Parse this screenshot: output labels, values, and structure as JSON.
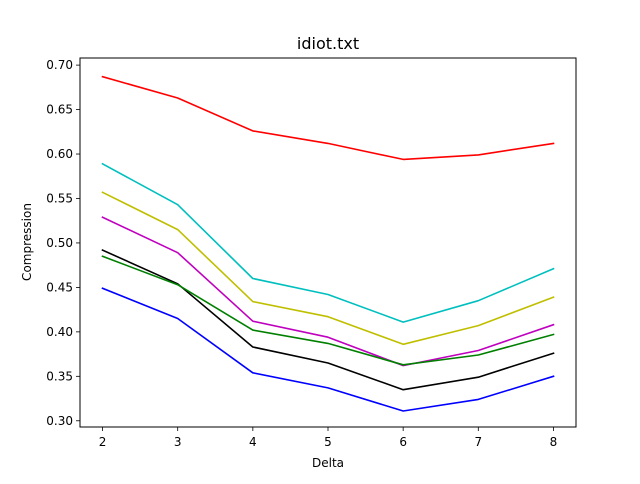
{
  "chart_data": {
    "type": "line",
    "title": "idiot.txt",
    "xlabel": "Delta",
    "ylabel": "Compression",
    "x": [
      2,
      3,
      4,
      5,
      6,
      7,
      8
    ],
    "xlim": [
      1.7,
      8.3
    ],
    "ylim": [
      0.293,
      0.708
    ],
    "xticks": [
      2,
      3,
      4,
      5,
      6,
      7,
      8
    ],
    "yticks": [
      0.3,
      0.35,
      0.4,
      0.45,
      0.5,
      0.55,
      0.6,
      0.65,
      0.7
    ],
    "grid": false,
    "series": [
      {
        "color": "#ff0000",
        "values": [
          0.687,
          0.663,
          0.626,
          0.612,
          0.594,
          0.599,
          0.612
        ]
      },
      {
        "color": "#00bfbf",
        "values": [
          0.589,
          0.543,
          0.46,
          0.442,
          0.411,
          0.435,
          0.471
        ]
      },
      {
        "color": "#bfbf00",
        "values": [
          0.557,
          0.515,
          0.434,
          0.417,
          0.386,
          0.407,
          0.439
        ]
      },
      {
        "color": "#bf00bf",
        "values": [
          0.529,
          0.489,
          0.412,
          0.394,
          0.362,
          0.379,
          0.408
        ]
      },
      {
        "color": "#000000",
        "values": [
          0.492,
          0.454,
          0.383,
          0.365,
          0.335,
          0.349,
          0.376
        ]
      },
      {
        "color": "#008000",
        "values": [
          0.485,
          0.453,
          0.402,
          0.387,
          0.363,
          0.374,
          0.397
        ]
      },
      {
        "color": "#0000ff",
        "values": [
          0.449,
          0.415,
          0.354,
          0.337,
          0.311,
          0.324,
          0.35
        ]
      }
    ]
  }
}
